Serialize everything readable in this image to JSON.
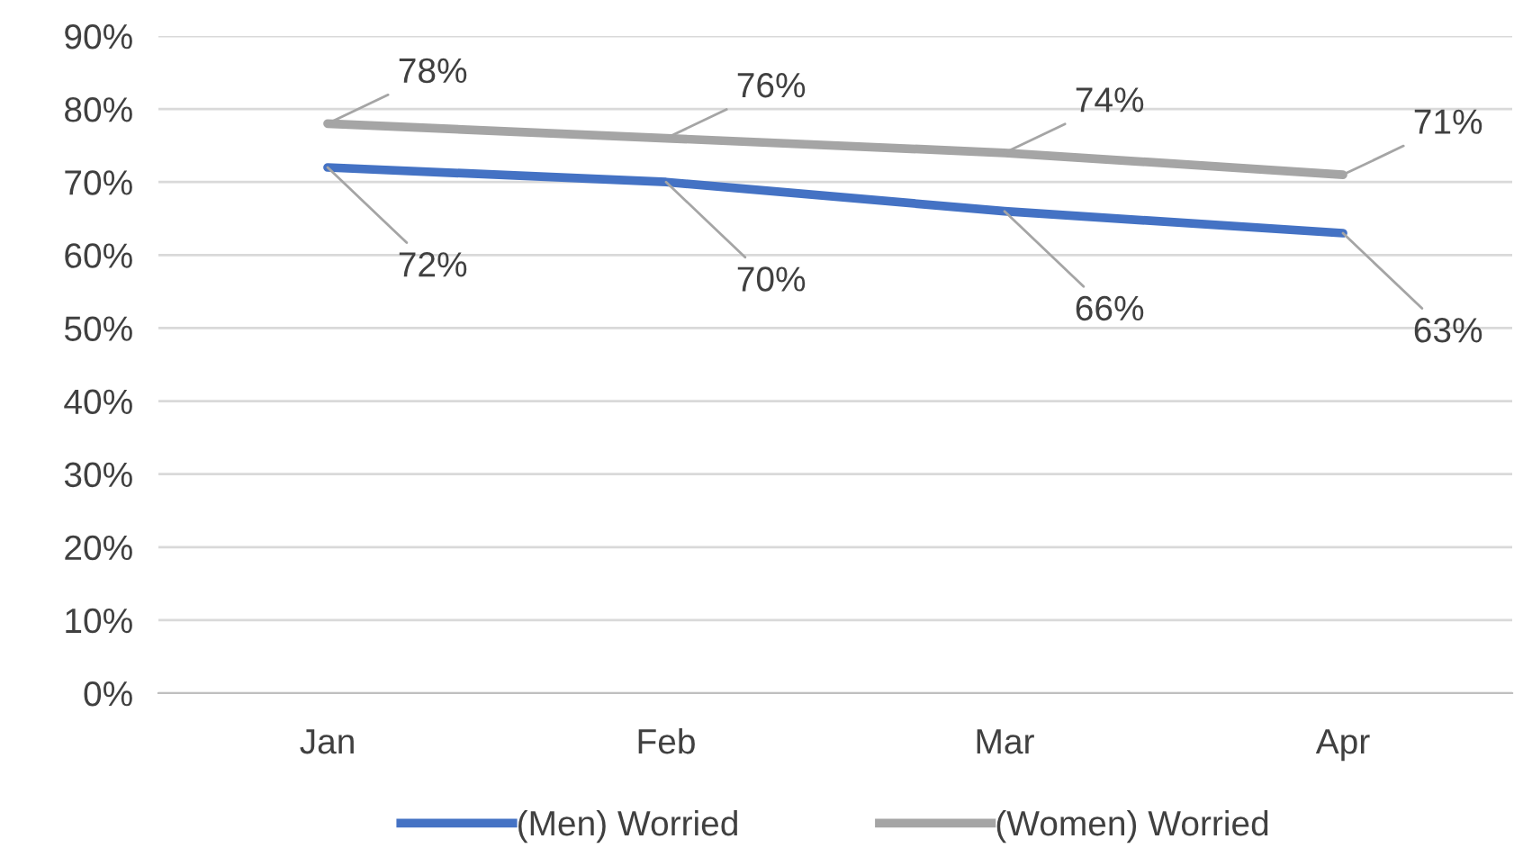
{
  "chart_data": {
    "type": "line",
    "categories": [
      "Jan",
      "Feb",
      "Mar",
      "Apr"
    ],
    "series": [
      {
        "name": "(Men) Worried",
        "color": "#4472c4",
        "values": [
          72,
          70,
          66,
          63
        ],
        "value_labels": [
          "72%",
          "70%",
          "66%",
          "63%"
        ]
      },
      {
        "name": "(Women) Worried",
        "color": "#a5a5a5",
        "values": [
          78,
          76,
          74,
          71
        ],
        "value_labels": [
          "78%",
          "76%",
          "74%",
          "71%"
        ]
      }
    ],
    "ylim": [
      0,
      90
    ],
    "yticks": [
      {
        "value": 0,
        "label": "0%"
      },
      {
        "value": 10,
        "label": "10%"
      },
      {
        "value": 20,
        "label": "20%"
      },
      {
        "value": 30,
        "label": "30%"
      },
      {
        "value": 40,
        "label": "40%"
      },
      {
        "value": 50,
        "label": "50%"
      },
      {
        "value": 60,
        "label": "60%"
      },
      {
        "value": 70,
        "label": "70%"
      },
      {
        "value": 80,
        "label": "80%"
      },
      {
        "value": 90,
        "label": "90%"
      }
    ],
    "grid": "y",
    "legend": "bottom",
    "marker": "none",
    "line_style": "solid"
  }
}
